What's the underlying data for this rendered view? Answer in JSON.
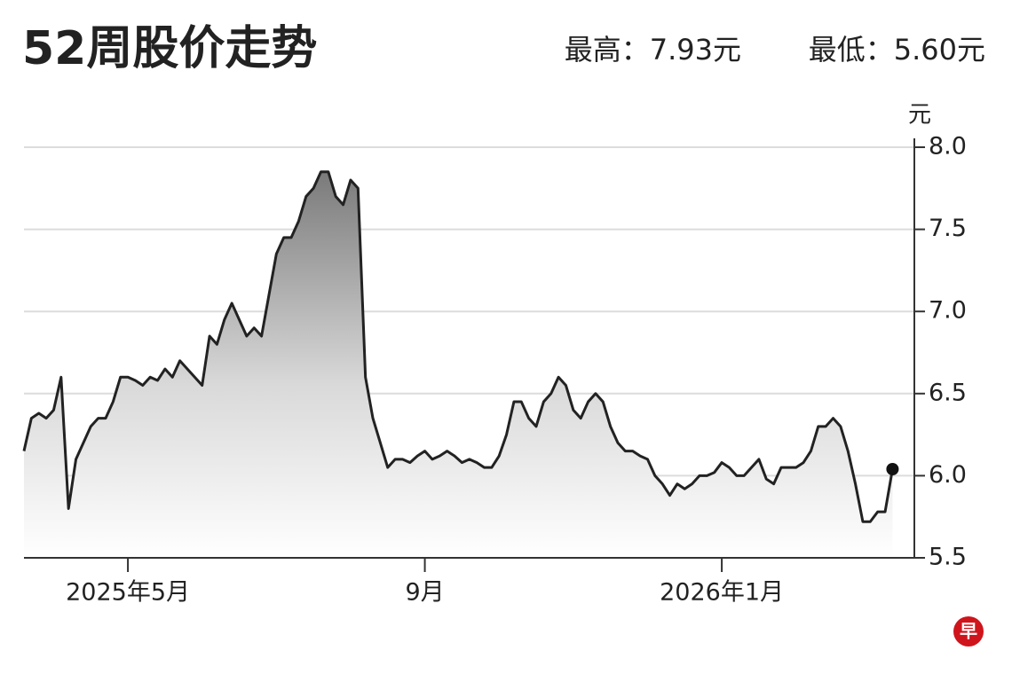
{
  "chart_data": {
    "type": "area",
    "title": "52周股价走势",
    "high_label": "最高：7.93元",
    "low_label": "最低：5.60元",
    "y_unit": "元",
    "logo": "早",
    "categories": [
      null,
      null,
      null,
      null,
      null,
      null,
      null,
      null,
      null,
      null,
      null,
      null,
      null,
      null,
      "2025年5月",
      null,
      null,
      null,
      null,
      null,
      null,
      null,
      null,
      null,
      null,
      null,
      null,
      null,
      null,
      null,
      null,
      null,
      null,
      null,
      null,
      null,
      null,
      null,
      null,
      null,
      null,
      null,
      null,
      null,
      null,
      null,
      null,
      null,
      null,
      null,
      null,
      null,
      null,
      null,
      "9月",
      null,
      null,
      null,
      null,
      null,
      null,
      null,
      null,
      null,
      null,
      null,
      null,
      null,
      null,
      null,
      null,
      null,
      null,
      null,
      null,
      null,
      null,
      null,
      null,
      null,
      null,
      null,
      null,
      null,
      null,
      null,
      null,
      null,
      null,
      null,
      null,
      null,
      null,
      null,
      "2026年1月",
      null,
      null,
      null,
      null,
      null,
      null,
      null,
      null,
      null,
      null,
      null,
      null,
      null,
      null,
      null,
      null,
      null,
      null,
      null,
      null,
      null,
      null,
      null
    ],
    "values": [
      6.15,
      6.35,
      6.38,
      6.35,
      6.4,
      6.6,
      5.8,
      6.1,
      6.2,
      6.3,
      6.35,
      6.35,
      6.45,
      6.6,
      6.6,
      6.58,
      6.55,
      6.6,
      6.58,
      6.65,
      6.6,
      6.7,
      6.65,
      6.6,
      6.55,
      6.85,
      6.8,
      6.95,
      7.05,
      6.95,
      6.85,
      6.9,
      6.85,
      7.1,
      7.35,
      7.45,
      7.45,
      7.55,
      7.7,
      7.75,
      7.85,
      7.85,
      7.7,
      7.65,
      7.8,
      7.75,
      6.6,
      6.35,
      6.2,
      6.05,
      6.1,
      6.1,
      6.08,
      6.12,
      6.15,
      6.1,
      6.12,
      6.15,
      6.12,
      6.08,
      6.1,
      6.08,
      6.05,
      6.05,
      6.12,
      6.25,
      6.45,
      6.45,
      6.35,
      6.3,
      6.45,
      6.5,
      6.6,
      6.55,
      6.4,
      6.35,
      6.45,
      6.5,
      6.45,
      6.3,
      6.2,
      6.15,
      6.15,
      6.12,
      6.1,
      6.0,
      5.95,
      5.88,
      5.95,
      5.92,
      5.95,
      6.0,
      6.0,
      6.02,
      6.08,
      6.05,
      6.0,
      6.0,
      6.05,
      6.1,
      5.98,
      5.95,
      6.05,
      6.05,
      6.05,
      6.08,
      6.15,
      6.3,
      6.3,
      6.35,
      6.3,
      6.15,
      5.95,
      5.72,
      5.72,
      5.78,
      5.78,
      6.04
    ],
    "color": "#222222",
    "ylim": [
      5.5,
      8.0
    ],
    "yticks": [
      {
        "value": 5.5,
        "label": "5.5"
      },
      {
        "value": 6,
        "label": "6.0"
      },
      6.5,
      {
        "value": 7,
        "label": "7.0"
      },
      7.5,
      {
        "value": 8,
        "label": "8.0"
      }
    ],
    "grid": true
  }
}
